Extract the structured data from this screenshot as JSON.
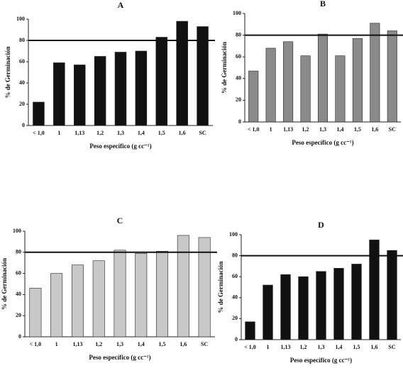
{
  "chart_data": [
    {
      "type": "bar",
      "title": "A",
      "categories": [
        "< 1,0",
        "1",
        "1,13",
        "1,2",
        "1,3",
        "1,4",
        "1,5",
        "1,6",
        "SC"
      ],
      "values": [
        22,
        59,
        57,
        65,
        69,
        70,
        83,
        98,
        93
      ],
      "color": "#111111",
      "ylim": [
        0,
        100
      ],
      "yticks": [
        0,
        20,
        40,
        60,
        80,
        100
      ],
      "reference_line": 80,
      "xlabel": "Peso específico (g cc⁻¹)",
      "ylabel": "% de Germinación"
    },
    {
      "type": "bar",
      "title": "B",
      "categories": [
        "< 1,0",
        "1",
        "1,13",
        "1,2",
        "1,3",
        "1,4",
        "1,5",
        "1,6",
        "SC"
      ],
      "values": [
        47,
        68,
        74,
        61,
        81,
        61,
        77,
        91,
        84
      ],
      "color": "#8a8a8a",
      "ylim": [
        0,
        100
      ],
      "yticks": [
        0,
        20,
        40,
        60,
        80,
        100
      ],
      "reference_line": 80,
      "xlabel": "Peso específico (g cc⁻¹)",
      "ylabel": "% de Germinación"
    },
    {
      "type": "bar",
      "title": "C",
      "categories": [
        "< 1,0",
        "1",
        "1,13",
        "1,2",
        "1,3",
        "1,4",
        "1,5",
        "1,6",
        "SC"
      ],
      "values": [
        46,
        60,
        68,
        72,
        82,
        79,
        81,
        96,
        94
      ],
      "color": "#c8c8c8",
      "ylim": [
        0,
        100
      ],
      "yticks": [
        0,
        20,
        40,
        60,
        80,
        100
      ],
      "reference_line": 80,
      "xlabel": "Peso específico (g cc⁻¹)",
      "ylabel": "% de Germinación"
    },
    {
      "type": "bar",
      "title": "D",
      "categories": [
        "< 1,0",
        "1",
        "1,13",
        "1,2",
        "1,3",
        "1,4",
        "1,5",
        "1,6",
        "SC"
      ],
      "values": [
        17,
        52,
        62,
        60,
        65,
        68,
        72,
        95,
        85
      ],
      "color": "#111111",
      "ylim": [
        0,
        100
      ],
      "yticks": [
        0,
        20,
        40,
        60,
        80,
        100
      ],
      "reference_line": 80,
      "xlabel": "Peso específico (g cc⁻¹)",
      "ylabel": "% de Germinación"
    }
  ]
}
